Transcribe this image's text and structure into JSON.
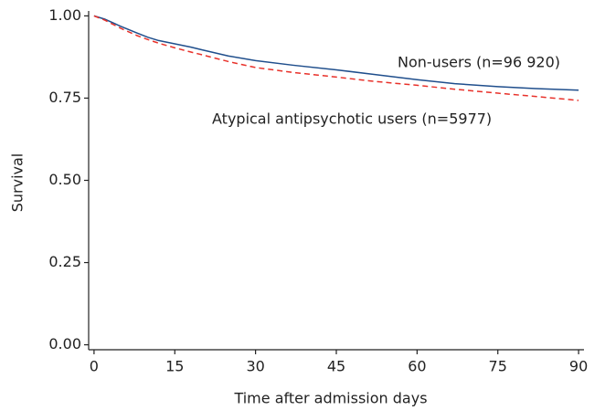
{
  "chart_data": {
    "type": "line",
    "xlabel": "Time after admission days",
    "ylabel": "Survival",
    "x": [
      0,
      2,
      5,
      8,
      10,
      12,
      15,
      18,
      20,
      25,
      30,
      37,
      45,
      52,
      60,
      67,
      75,
      82,
      90
    ],
    "series": [
      {
        "name": "Non-users (n=96 920)",
        "color": "#1f4e8c",
        "dash": false,
        "values": [
          1.0,
          0.99,
          0.968,
          0.948,
          0.935,
          0.925,
          0.915,
          0.905,
          0.897,
          0.878,
          0.864,
          0.85,
          0.836,
          0.822,
          0.806,
          0.794,
          0.785,
          0.779,
          0.774
        ]
      },
      {
        "name": "Atypical antipsychotic users (n=5977)",
        "color": "#e8312a",
        "dash": true,
        "values": [
          1.0,
          0.987,
          0.962,
          0.94,
          0.928,
          0.917,
          0.903,
          0.89,
          0.882,
          0.861,
          0.843,
          0.828,
          0.814,
          0.801,
          0.789,
          0.777,
          0.765,
          0.755,
          0.743
        ]
      }
    ],
    "xlim": [
      -1,
      91
    ],
    "ylim": [
      -0.015,
      1.015
    ],
    "xticks": [
      0,
      15,
      30,
      45,
      60,
      75,
      90
    ],
    "yticks": [
      {
        "value": 0,
        "label": "0.00"
      },
      {
        "value": 0.25,
        "label": "0.25"
      },
      {
        "value": 0.5,
        "label": "0.50"
      },
      {
        "value": 0.75,
        "label": "0.75"
      },
      {
        "value": 1,
        "label": "1.00"
      }
    ],
    "grid": false
  }
}
